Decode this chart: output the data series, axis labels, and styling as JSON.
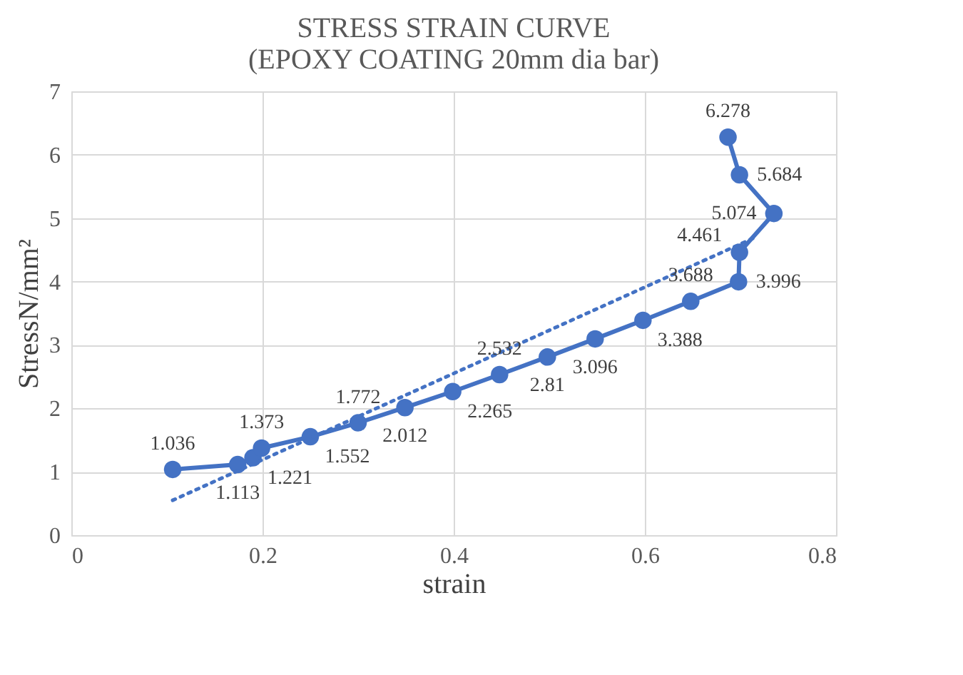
{
  "chart_data": {
    "type": "line",
    "title": [
      "STRESS STRAIN CURVE",
      "(EPOXY COATING 20mm dia bar)"
    ],
    "xlabel": "strain",
    "ylabel": "StressN/mm²",
    "xlim": [
      0,
      0.8
    ],
    "xticks": [
      0,
      0.2,
      0.4,
      0.6,
      0.8
    ],
    "ylim": [
      0,
      7
    ],
    "yticks": [
      0,
      1,
      2,
      3,
      4,
      5,
      6,
      7
    ],
    "grid": true,
    "legend": false,
    "series": [
      {
        "type": "line",
        "color": "#4472c4",
        "marker": "circle",
        "line_style": "solid",
        "x": [
          0.106,
          0.174,
          0.19,
          0.199,
          0.25,
          0.3,
          0.349,
          0.399,
          0.448,
          0.498,
          0.548,
          0.598,
          0.648,
          0.698,
          0.699,
          0.735,
          0.699,
          0.687
        ],
        "values": [
          1.036,
          1.113,
          1.221,
          1.373,
          1.552,
          1.772,
          2.012,
          2.265,
          2.532,
          2.81,
          3.096,
          3.388,
          3.688,
          3.996,
          4.461,
          5.074,
          5.684,
          6.278
        ],
        "value_labels": [
          "1.036",
          "1.113",
          "1.221",
          "1.373",
          "1.552",
          "1.772",
          "2.012",
          "2.265",
          "2.532",
          "2.81",
          "3.096",
          "3.388",
          "3.688",
          "3.996",
          "4.461",
          "5.074",
          "5.684",
          "6.278"
        ]
      },
      {
        "type": "line",
        "color": "#4472c4",
        "marker": "none",
        "line_style": "dotted",
        "x": [
          0.106,
          0.713
        ],
        "values": [
          0.55,
          4.68
        ]
      }
    ]
  }
}
